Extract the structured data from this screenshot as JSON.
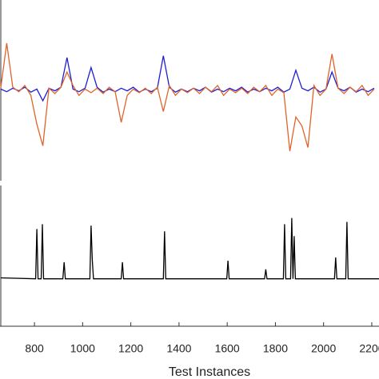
{
  "chart_data": [
    {
      "type": "line",
      "xlim": [
        657,
        2230
      ],
      "ylim": [
        -5,
        5
      ],
      "x": [
        660,
        685,
        710,
        735,
        760,
        785,
        810,
        835,
        860,
        885,
        910,
        935,
        960,
        985,
        1010,
        1035,
        1060,
        1085,
        1110,
        1135,
        1160,
        1185,
        1210,
        1235,
        1260,
        1285,
        1310,
        1335,
        1360,
        1385,
        1410,
        1435,
        1460,
        1485,
        1510,
        1535,
        1560,
        1585,
        1610,
        1635,
        1660,
        1685,
        1710,
        1735,
        1760,
        1785,
        1810,
        1835,
        1860,
        1885,
        1910,
        1935,
        1960,
        1985,
        2010,
        2035,
        2060,
        2085,
        2110,
        2135,
        2160,
        2185,
        2210
      ],
      "series": [
        {
          "color": "#1f1fd6",
          "values": [
            0.05,
            -0.1,
            0.1,
            -0.05,
            0.15,
            -0.12,
            0.05,
            -0.6,
            0.1,
            -0.05,
            0.15,
            1.8,
            0.05,
            -0.1,
            0.1,
            1.25,
            0.15,
            -0.12,
            0.05,
            -0.1,
            0.1,
            -0.05,
            0.15,
            -0.12,
            0.05,
            -0.1,
            0.1,
            1.9,
            0.15,
            -0.12,
            0.05,
            -0.1,
            0.1,
            -0.05,
            0.15,
            -0.12,
            0.05,
            -0.1,
            0.1,
            -0.05,
            0.15,
            -0.12,
            0.05,
            -0.1,
            0.1,
            -0.05,
            0.15,
            -0.12,
            0.05,
            1.1,
            0.1,
            -0.05,
            0.15,
            -0.12,
            0.05,
            1.0,
            0.1,
            -0.05,
            0.15,
            -0.12,
            0.05,
            -0.1,
            0.1
          ]
        },
        {
          "color": "#e0642a",
          "values": [
            0.1,
            2.6,
            0.15,
            -0.1,
            0.25,
            -0.3,
            -1.9,
            -3.1,
            0.1,
            -0.2,
            0.15,
            1.0,
            0.25,
            -0.3,
            0.05,
            -0.15,
            0.1,
            -0.2,
            0.15,
            -0.1,
            -1.8,
            -0.3,
            0.05,
            -0.15,
            0.1,
            -0.2,
            0.15,
            -1.2,
            0.25,
            -0.3,
            0.05,
            -0.15,
            0.1,
            -0.2,
            0.15,
            -0.1,
            0.25,
            -0.3,
            0.05,
            -0.15,
            0.1,
            -0.2,
            0.15,
            -0.1,
            0.25,
            -0.3,
            0.05,
            -0.15,
            -3.4,
            -1.5,
            -2.0,
            -3.2,
            0.25,
            -0.3,
            0.05,
            2.0,
            0.1,
            -0.2,
            0.15,
            -0.1,
            0.25,
            -0.3,
            0.05
          ]
        }
      ]
    },
    {
      "type": "line",
      "xlabel": "Test Instances",
      "xlim": [
        657,
        2230
      ],
      "ylim": [
        -1,
        2
      ],
      "xticks": [
        800,
        1000,
        1200,
        1400,
        1600,
        1800,
        2000,
        2200
      ],
      "x": [
        660,
        805,
        810,
        815,
        828,
        833,
        838,
        918,
        923,
        928,
        1030,
        1035,
        1040,
        1045,
        1160,
        1165,
        1170,
        1335,
        1340,
        1345,
        1598,
        1603,
        1608,
        1755,
        1760,
        1765,
        1833,
        1838,
        1843,
        1863,
        1868,
        1873,
        1878,
        1883,
        2045,
        2050,
        2055,
        2092,
        2097,
        2102,
        2230
      ],
      "series": [
        {
          "color": "#000000",
          "values": [
            0.02,
            0,
            1.05,
            0,
            0,
            1.15,
            0,
            0,
            0.35,
            0,
            0,
            1.12,
            0.4,
            0,
            0,
            0.35,
            0,
            0,
            1.0,
            0,
            0,
            0.38,
            0,
            0,
            0.2,
            0,
            0,
            1.15,
            0,
            0,
            1.28,
            0,
            0.9,
            0,
            0,
            0.45,
            0,
            0,
            1.2,
            0,
            0
          ]
        }
      ]
    }
  ]
}
